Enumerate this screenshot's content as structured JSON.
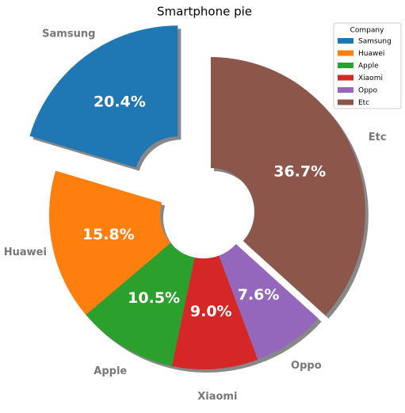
{
  "chart_data": {
    "type": "pie",
    "title": "Smartphone pie",
    "categories": [
      "Samsung",
      "Huawei",
      "Apple",
      "Xiaomi",
      "Oppo",
      "Etc"
    ],
    "values": [
      20.4,
      15.8,
      10.5,
      9.0,
      7.6,
      36.7
    ],
    "value_labels": [
      "20.4%",
      "15.8%",
      "10.5%",
      "9.0%",
      "7.6%",
      "36.7%"
    ],
    "colors": [
      "#1f77b4",
      "#ff7f0e",
      "#2ca02c",
      "#d62728",
      "#9467bd",
      "#8c564b"
    ],
    "explode": [
      0.28,
      0,
      0,
      0,
      0,
      0.05
    ],
    "shadow": true,
    "legend": {
      "title": "Company",
      "loc": "upper right"
    }
  }
}
